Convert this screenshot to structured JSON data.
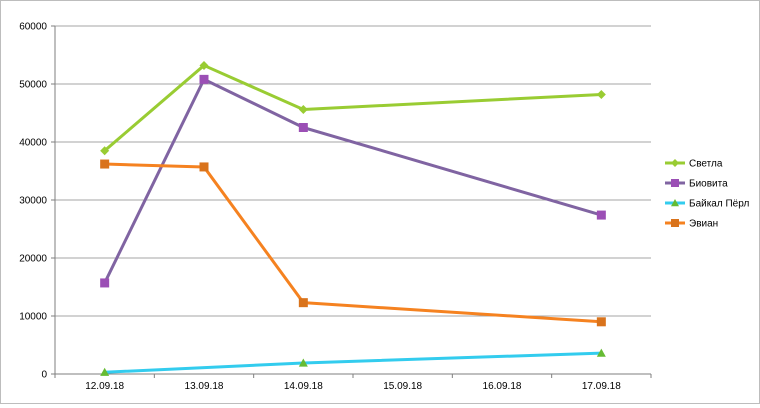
{
  "chart_data": {
    "type": "line",
    "title": "",
    "xlabel": "",
    "ylabel": "",
    "categories": [
      "12.09.18",
      "13.09.18",
      "14.09.18",
      "15.09.18",
      "16.09.18",
      "17.09.18"
    ],
    "ylim": [
      0,
      60000
    ],
    "yticks": [
      0,
      10000,
      20000,
      30000,
      40000,
      50000,
      60000
    ],
    "ytick_labels": [
      "0",
      "10000",
      "20000",
      "30000",
      "40000",
      "50000",
      "60000"
    ],
    "grid": "horizontal",
    "legend_position": "right",
    "series": [
      {
        "name": "Светла",
        "color": "#99cc33",
        "marker": "diamond",
        "points": [
          {
            "x": "12.09.18",
            "y": 38500
          },
          {
            "x": "13.09.18",
            "y": 53200
          },
          {
            "x": "14.09.18",
            "y": 45600
          },
          {
            "x": "17.09.18",
            "y": 48200
          }
        ]
      },
      {
        "name": "Биовита",
        "color": "#8064a2",
        "marker_color": "#9b4fb5",
        "marker": "square",
        "points": [
          {
            "x": "12.09.18",
            "y": 15700
          },
          {
            "x": "13.09.18",
            "y": 50800
          },
          {
            "x": "14.09.18",
            "y": 42500
          },
          {
            "x": "17.09.18",
            "y": 27400
          }
        ]
      },
      {
        "name": "Байкал Пёрл",
        "color": "#33ccee",
        "marker_color": "#66bb33",
        "marker": "triangle",
        "points": [
          {
            "x": "12.09.18",
            "y": 300
          },
          {
            "x": "14.09.18",
            "y": 1900
          },
          {
            "x": "17.09.18",
            "y": 3600
          }
        ]
      },
      {
        "name": "Эвиан",
        "color": "#f58220",
        "marker_color": "#d9731c",
        "marker": "square",
        "points": [
          {
            "x": "12.09.18",
            "y": 36200
          },
          {
            "x": "13.09.18",
            "y": 35700
          },
          {
            "x": "14.09.18",
            "y": 12300
          },
          {
            "x": "17.09.18",
            "y": 9000
          }
        ]
      }
    ]
  }
}
